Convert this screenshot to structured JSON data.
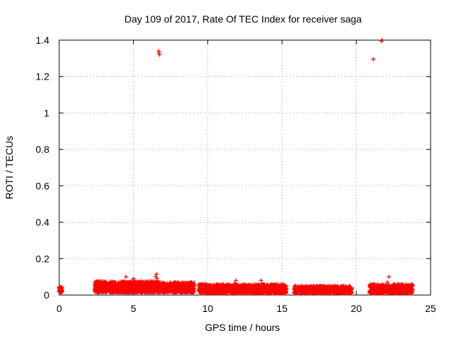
{
  "chart_data": {
    "type": "scatter",
    "title": "Day 109 of 2017, Rate Of TEC Index for receiver saga",
    "xlabel": "GPS time / hours",
    "ylabel": "ROTI / TECUs",
    "xlim": [
      0,
      25
    ],
    "ylim": [
      0,
      1.4
    ],
    "grid": true,
    "legend": "none",
    "marker": "+",
    "color": "#ff0000",
    "xticks": [
      0,
      5,
      10,
      15,
      20,
      25
    ],
    "xtick_labels": [
      "0",
      "5",
      "10",
      "15",
      "20",
      "25"
    ],
    "yticks": [
      0,
      0.2,
      0.4,
      0.6,
      0.8,
      1,
      1.2,
      1.4
    ],
    "ytick_labels": [
      "0",
      "0.2",
      "0.4",
      "0.6",
      "0.8",
      "1",
      "1.2",
      "1.4"
    ],
    "series": [
      {
        "name": "ROTI",
        "points": [
          [
            0.05,
            0.03
          ],
          [
            0.1,
            0.025
          ],
          [
            0.15,
            0.04
          ],
          [
            0.2,
            0.02
          ],
          [
            2.5,
            0.03
          ],
          [
            2.6,
            0.04
          ],
          [
            2.8,
            0.05
          ],
          [
            3.0,
            0.045
          ],
          [
            3.2,
            0.06
          ],
          [
            3.4,
            0.04
          ],
          [
            3.6,
            0.055
          ],
          [
            3.8,
            0.05
          ],
          [
            4.0,
            0.065
          ],
          [
            4.2,
            0.05
          ],
          [
            4.4,
            0.07
          ],
          [
            4.5,
            0.1
          ],
          [
            4.6,
            0.06
          ],
          [
            4.8,
            0.045
          ],
          [
            5.0,
            0.09
          ],
          [
            5.1,
            0.075
          ],
          [
            5.3,
            0.05
          ],
          [
            5.5,
            0.04
          ],
          [
            5.8,
            0.03
          ],
          [
            6.0,
            0.035
          ],
          [
            6.2,
            0.03
          ],
          [
            6.4,
            0.06
          ],
          [
            6.5,
            0.1
          ],
          [
            6.55,
            0.115
          ],
          [
            6.6,
            0.09
          ],
          [
            6.7,
            1.34
          ],
          [
            6.72,
            1.33
          ],
          [
            6.75,
            1.32
          ],
          [
            6.8,
            0.04
          ],
          [
            7.0,
            0.05
          ],
          [
            7.2,
            0.045
          ],
          [
            7.4,
            0.06
          ],
          [
            7.6,
            0.05
          ],
          [
            7.8,
            0.07
          ],
          [
            8.0,
            0.04
          ],
          [
            8.2,
            0.035
          ],
          [
            8.4,
            0.05
          ],
          [
            8.6,
            0.055
          ],
          [
            8.8,
            0.045
          ],
          [
            9.0,
            0.03
          ],
          [
            9.5,
            0.04
          ],
          [
            9.7,
            0.06
          ],
          [
            9.9,
            0.05
          ],
          [
            10.1,
            0.03
          ],
          [
            10.4,
            0.025
          ],
          [
            10.8,
            0.03
          ],
          [
            11.2,
            0.025
          ],
          [
            11.6,
            0.04
          ],
          [
            11.8,
            0.065
          ],
          [
            11.9,
            0.08
          ],
          [
            12.2,
            0.03
          ],
          [
            12.6,
            0.025
          ],
          [
            13.0,
            0.03
          ],
          [
            13.3,
            0.045
          ],
          [
            13.6,
            0.08
          ],
          [
            13.8,
            0.06
          ],
          [
            14.0,
            0.04
          ],
          [
            14.4,
            0.03
          ],
          [
            14.8,
            0.035
          ],
          [
            15.0,
            0.05
          ],
          [
            15.1,
            0.06
          ],
          [
            15.2,
            0.03
          ],
          [
            15.9,
            0.025
          ],
          [
            16.2,
            0.03
          ],
          [
            16.6,
            0.035
          ],
          [
            17.0,
            0.04
          ],
          [
            17.4,
            0.05
          ],
          [
            17.8,
            0.045
          ],
          [
            18.2,
            0.05
          ],
          [
            18.6,
            0.04
          ],
          [
            19.0,
            0.03
          ],
          [
            19.4,
            0.025
          ],
          [
            19.6,
            0.02
          ],
          [
            20.9,
            0.01
          ],
          [
            21.0,
            0.025
          ],
          [
            21.15,
            1.295
          ],
          [
            21.3,
            0.04
          ],
          [
            21.5,
            0.05
          ],
          [
            21.7,
            1.395
          ],
          [
            21.75,
            1.4
          ],
          [
            21.9,
            0.04
          ],
          [
            22.1,
            0.07
          ],
          [
            22.2,
            0.1
          ],
          [
            22.3,
            0.05
          ],
          [
            22.6,
            0.04
          ],
          [
            22.9,
            0.035
          ],
          [
            23.2,
            0.045
          ],
          [
            23.5,
            0.03
          ],
          [
            23.7,
            0.025
          ]
        ]
      }
    ],
    "dense_bands": [
      {
        "x_start": 0.0,
        "x_end": 0.2,
        "y_min": 0.015,
        "y_max": 0.045,
        "count": 30
      },
      {
        "x_start": 2.4,
        "x_end": 6.6,
        "y_min": 0.015,
        "y_max": 0.075,
        "count": 900
      },
      {
        "x_start": 6.6,
        "x_end": 9.1,
        "y_min": 0.015,
        "y_max": 0.07,
        "count": 450
      },
      {
        "x_start": 9.4,
        "x_end": 15.3,
        "y_min": 0.01,
        "y_max": 0.06,
        "count": 1000
      },
      {
        "x_start": 15.8,
        "x_end": 19.7,
        "y_min": 0.01,
        "y_max": 0.05,
        "count": 650
      },
      {
        "x_start": 20.9,
        "x_end": 23.8,
        "y_min": 0.01,
        "y_max": 0.06,
        "count": 550
      }
    ]
  }
}
